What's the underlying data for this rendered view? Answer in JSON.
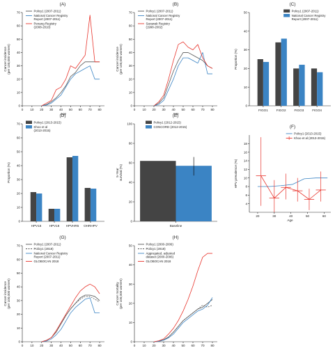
{
  "chart_data": [
    {
      "panel": "(A)",
      "type": "line",
      "xlabel": "Age",
      "ylabel": [
        "Cancer incidence",
        "(per 100,000 women)"
      ],
      "xlim": [
        0,
        85
      ],
      "ylim": [
        0,
        70
      ],
      "xticks": [
        0,
        10,
        20,
        30,
        40,
        50,
        60,
        70,
        80
      ],
      "yticks": [
        0,
        10,
        20,
        30,
        40,
        50,
        60,
        70
      ],
      "x": [
        20,
        25,
        30,
        35,
        40,
        45,
        50,
        55,
        60,
        65,
        70,
        75,
        80
      ],
      "legend_loc": "top-left",
      "series": [
        {
          "name": [
            "Policy1 (2007-2011)"
          ],
          "color": "#555555",
          "dash": "",
          "values": [
            0,
            1,
            3,
            6,
            10,
            15,
            22,
            25,
            30,
            33,
            33,
            33,
            33
          ]
        },
        {
          "name": [
            "National Cancer Registry",
            "Report (2007-2011)"
          ],
          "color": "#3b84c4",
          "dash": "",
          "values": [
            0,
            0.5,
            2,
            5,
            8,
            14,
            20,
            24,
            26,
            28,
            30,
            20,
            20
          ]
        },
        {
          "name": [
            "Penang Registry",
            "(2008-2010)"
          ],
          "color": "#e8342c",
          "dash": "",
          "values": [
            0,
            2,
            4,
            12,
            14,
            20,
            30,
            28,
            33,
            38,
            68,
            33,
            33
          ]
        }
      ]
    },
    {
      "panel": "(B)",
      "type": "line",
      "xlabel": "Age",
      "ylabel": [
        "Cancer incidence",
        "(per 100,000 women)"
      ],
      "xlim": [
        0,
        85
      ],
      "ylim": [
        0,
        70
      ],
      "xticks": [
        0,
        10,
        20,
        30,
        40,
        50,
        60,
        70,
        80
      ],
      "yticks": [
        0,
        10,
        20,
        30,
        40,
        50,
        60,
        70
      ],
      "x": [
        20,
        25,
        30,
        35,
        40,
        45,
        50,
        55,
        60,
        65,
        70,
        75,
        80
      ],
      "legend_loc": "top-left",
      "series": [
        {
          "name": [
            "Policy1 (2007-2011)"
          ],
          "color": "#555555",
          "dash": "",
          "values": [
            0,
            2,
            6,
            16,
            26,
            34,
            40,
            40,
            38,
            36,
            34,
            30,
            28
          ]
        },
        {
          "name": [
            "National Cancer Registry",
            "Report (2007-2011)"
          ],
          "color": "#3b84c4",
          "dash": "",
          "values": [
            0,
            1,
            4,
            12,
            20,
            30,
            36,
            36,
            34,
            32,
            40,
            24,
            24
          ]
        },
        {
          "name": [
            "Sarawak Registry",
            "(1998-2002)"
          ],
          "color": "#e8342c",
          "dash": "",
          "values": [
            0,
            3,
            8,
            20,
            34,
            46,
            48,
            44,
            42,
            46,
            36,
            30,
            28
          ]
        }
      ]
    },
    {
      "panel": "(C)",
      "type": "bar",
      "ylabel": [
        "Proportion (%)"
      ],
      "ylim": [
        0,
        50
      ],
      "yticks": [
        0,
        10,
        20,
        30,
        40,
        50
      ],
      "categories": [
        "FIGO1",
        "FIGO2",
        "FIGO3",
        "FIGO4"
      ],
      "legend_loc": "top-right",
      "series": [
        {
          "name": [
            "Policy1 (2007-2011)"
          ],
          "color": "#444444",
          "values": [
            25,
            34,
            20,
            20
          ]
        },
        {
          "name": [
            "National Cancer Registry",
            "Report (2007-2011)"
          ],
          "color": "#3b84c4",
          "values": [
            23.5,
            36,
            22,
            18
          ]
        }
      ]
    },
    {
      "panel": "(D)",
      "type": "bar",
      "ylabel": [
        "Proportion (%)"
      ],
      "ylim": [
        0,
        70
      ],
      "yticks": [
        0,
        10,
        20,
        30,
        40,
        50,
        60,
        70
      ],
      "categories": [
        "HPV16",
        "HPV18",
        "HPVHR5",
        "OHRHPV"
      ],
      "legend_loc": "top-left",
      "series": [
        {
          "name": [
            "Policy1 (2013-2015)"
          ],
          "color": "#444444",
          "values": [
            21,
            9,
            46,
            24
          ]
        },
        {
          "name": [
            "Khoo et al",
            "(2013-2015)"
          ],
          "color": "#3b84c4",
          "values": [
            20,
            9,
            47,
            23.5
          ]
        }
      ]
    },
    {
      "panel": "(E)",
      "type": "bar",
      "ylabel": [
        "5-Year",
        "survival (%)"
      ],
      "ylim": [
        0,
        100
      ],
      "yticks": [
        0,
        20,
        40,
        60,
        80,
        100
      ],
      "categories": [
        "Baseline"
      ],
      "legend_loc": "top-right",
      "series": [
        {
          "name": [
            "Policy1 (2012-2015)"
          ],
          "color": "#444444",
          "values": [
            62
          ]
        },
        {
          "name": [
            "CONCORD (2012-2015)"
          ],
          "color": "#3b84c4",
          "values": [
            57
          ],
          "err_low": [
            47
          ],
          "err_high": [
            66
          ]
        }
      ]
    },
    {
      "panel": "(F)",
      "type": "line",
      "xlabel": "Age",
      "ylabel": [
        "HPV prevalence (%)"
      ],
      "xlim": [
        15,
        64
      ],
      "ylim": [
        2,
        20
      ],
      "xticks": [
        20,
        30,
        40,
        50,
        60
      ],
      "yticks": [
        4,
        6,
        8,
        10,
        12,
        14,
        16,
        18
      ],
      "legend_loc": "top-right",
      "series": [
        {
          "name": [
            "Policy1 (2013-2015)"
          ],
          "color": "#3b84c4",
          "dash": "",
          "x": [
            20,
            27,
            34,
            41,
            48,
            55,
            62
          ],
          "values": [
            8.0,
            8.0,
            8.2,
            8.5,
            9.8,
            10.0,
            10.0
          ]
        },
        {
          "name": [
            "Khoo et al (2013-2015)"
          ],
          "color": "#e8342c",
          "dash": "",
          "x": [
            22,
            30,
            37,
            44,
            51,
            58
          ],
          "values": [
            10.5,
            5.3,
            7.8,
            7.0,
            5.0,
            7.2
          ],
          "err_low": [
            3.5,
            2.0,
            5.0,
            4.5,
            2.5,
            4.5
          ],
          "err_high": [
            19.5,
            9.5,
            11.0,
            10.0,
            7.5,
            11.5
          ],
          "xerr": 3
        }
      ]
    },
    {
      "panel": "(G)",
      "type": "line",
      "xlabel": "Age",
      "ylabel": [
        "Cancer incidence",
        "(per 100,000 women)"
      ],
      "xlim": [
        0,
        85
      ],
      "ylim": [
        0,
        70
      ],
      "xticks": [
        0,
        10,
        20,
        30,
        40,
        50,
        60,
        70,
        80
      ],
      "yticks": [
        0,
        10,
        20,
        30,
        40,
        50,
        60,
        70
      ],
      "x": [
        20,
        25,
        30,
        35,
        40,
        45,
        50,
        55,
        60,
        65,
        70,
        75,
        80
      ],
      "legend_loc": "top-left",
      "series": [
        {
          "name": [
            "Policy1 (2007-2011)"
          ],
          "color": "#555555",
          "dash": "",
          "values": [
            0,
            1,
            3,
            7,
            13,
            19,
            24,
            28,
            32,
            34,
            34,
            33,
            30
          ]
        },
        {
          "name": [
            "Policy1 (2018)"
          ],
          "color": "#555555",
          "dash": "2,1.5",
          "values": [
            0,
            1,
            3,
            7,
            13,
            19,
            24,
            28,
            31,
            33,
            33,
            31,
            29
          ]
        },
        {
          "name": [
            "National Cancer Registry",
            "Report (2007-2011)"
          ],
          "color": "#3b84c4",
          "dash": "",
          "values": [
            0,
            0.5,
            2,
            5,
            9,
            15,
            21,
            25,
            28,
            31,
            32,
            21,
            21
          ]
        },
        {
          "name": [
            "GLOBOCAN 2018"
          ],
          "color": "#e8342c",
          "dash": "",
          "values": [
            0,
            1,
            3,
            8,
            14,
            20,
            26,
            32,
            37,
            40,
            42,
            40,
            35
          ]
        }
      ]
    },
    {
      "panel": "(H)",
      "type": "line",
      "xlabel": "Age",
      "ylabel": [
        "Cancer mortality",
        "(per 100,000 women)"
      ],
      "xlim": [
        0,
        85
      ],
      "ylim": [
        0,
        50
      ],
      "xticks": [
        0,
        10,
        20,
        30,
        40,
        50,
        60,
        70,
        80
      ],
      "yticks": [
        0,
        10,
        20,
        30,
        40,
        50
      ],
      "x": [
        20,
        25,
        30,
        35,
        40,
        45,
        50,
        55,
        60,
        65,
        70,
        75,
        80
      ],
      "legend_loc": "top-left",
      "series": [
        {
          "name": [
            "Policy1 (2000-2006)"
          ],
          "color": "#555555",
          "dash": "",
          "values": [
            0,
            0.3,
            1,
            2.5,
            5,
            8,
            11,
            13,
            15,
            17,
            18,
            20,
            22
          ]
        },
        {
          "name": [
            "Policy1 (2018)"
          ],
          "color": "#555555",
          "dash": "2,1.5",
          "values": [
            0,
            0.3,
            1,
            2.5,
            5,
            8,
            11,
            13,
            15,
            17,
            19,
            18,
            19
          ]
        },
        {
          "name": [
            "Aggregated, adjusted",
            "dataset (2000-2006)"
          ],
          "color": "#3b84c4",
          "dash": "",
          "values": [
            0,
            0.2,
            0.8,
            2,
            4,
            7,
            10,
            12,
            14,
            16,
            17,
            19,
            23
          ]
        },
        {
          "name": [
            "GLOBOCAN 2018"
          ],
          "color": "#e8342c",
          "dash": "",
          "values": [
            0,
            0.5,
            1.5,
            4,
            7,
            11,
            16,
            22,
            29,
            37,
            44,
            46,
            46
          ]
        }
      ]
    }
  ]
}
